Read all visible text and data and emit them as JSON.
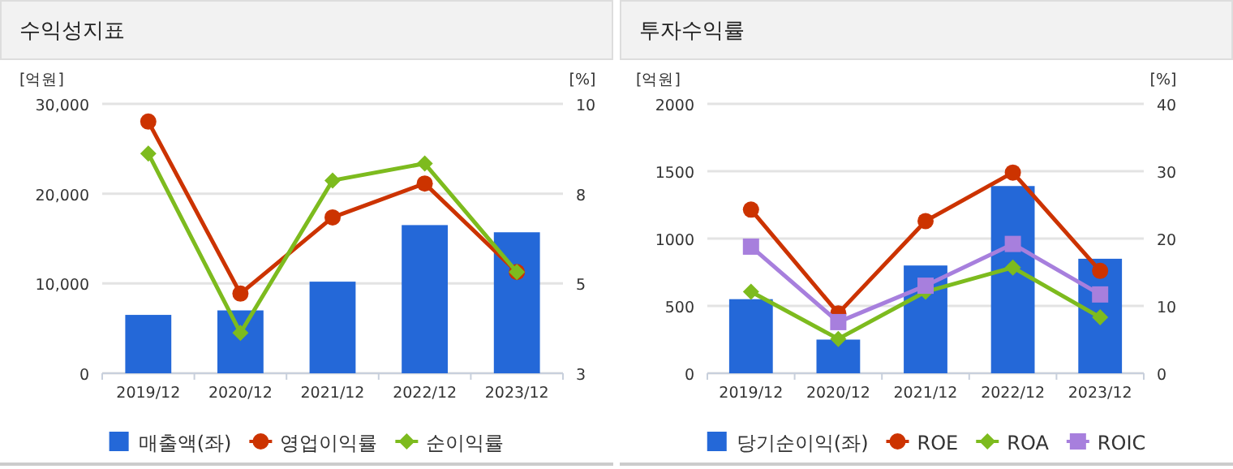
{
  "chart_data": [
    {
      "type": "bar",
      "title": "수익성지표",
      "ylabel": "[억원]",
      "y2label": "[%]",
      "categories": [
        "2019/12",
        "2020/12",
        "2021/12",
        "2022/12",
        "2023/12"
      ],
      "series": [
        {
          "name": "매출액(좌)",
          "color": "#2468d8",
          "values": [
            6500,
            7000,
            10200,
            16500,
            15700
          ]
        },
        {
          "name": "영업이익률",
          "type": "line",
          "axis": "y2",
          "marker": "circle",
          "color": "#cc3300",
          "values": [
            9.54,
            5.07,
            7.05,
            7.93,
            5.63
          ]
        },
        {
          "name": "순이익률",
          "type": "line",
          "axis": "y2",
          "marker": "diamond",
          "color": "#7dbb1e",
          "values": [
            8.71,
            4.05,
            8.01,
            8.45,
            5.63
          ]
        }
      ],
      "ylim": [
        0,
        30000
      ],
      "yticks": [
        {
          "value": 0,
          "label": "0"
        },
        {
          "value": 10000,
          "label": "10,000"
        },
        {
          "value": 20000,
          "label": "20,000"
        },
        {
          "value": 30000,
          "label": "30,000"
        }
      ],
      "y2lim": [
        3,
        10
      ],
      "y2ticks": [
        3,
        {
          "value": 5.333,
          "label": "5"
        },
        {
          "value": 7.667,
          "label": "8"
        },
        10
      ],
      "grid": "y",
      "legend": "bottom"
    },
    {
      "type": "bar",
      "title": "투자수익률",
      "ylabel": "[억원]",
      "y2label": "[%]",
      "categories": [
        "2019/12",
        "2020/12",
        "2021/12",
        "2022/12",
        "2023/12"
      ],
      "series": [
        {
          "name": "당기순이익(좌)",
          "color": "#2468d8",
          "values": [
            550,
            250,
            800,
            1390,
            850
          ]
        },
        {
          "name": "ROE",
          "type": "line",
          "axis": "y2",
          "marker": "circle",
          "color": "#cc3300",
          "values": [
            24.3,
            8.9,
            22.6,
            29.8,
            15.2
          ]
        },
        {
          "name": "ROA",
          "type": "line",
          "axis": "y2",
          "marker": "diamond",
          "color": "#7dbb1e",
          "values": [
            12.1,
            5.1,
            12.1,
            15.7,
            8.3
          ]
        },
        {
          "name": "ROIC",
          "type": "line",
          "axis": "y2",
          "marker": "square",
          "color": "#a77fdd",
          "values": [
            18.8,
            7.6,
            13.0,
            19.2,
            11.7
          ]
        }
      ],
      "ylim": [
        0,
        2000
      ],
      "yticks": [
        0,
        500,
        1000,
        1500,
        2000
      ],
      "y2lim": [
        0,
        40
      ],
      "y2ticks": [
        0,
        10,
        20,
        30,
        40
      ],
      "grid": "y",
      "legend": "bottom"
    }
  ]
}
